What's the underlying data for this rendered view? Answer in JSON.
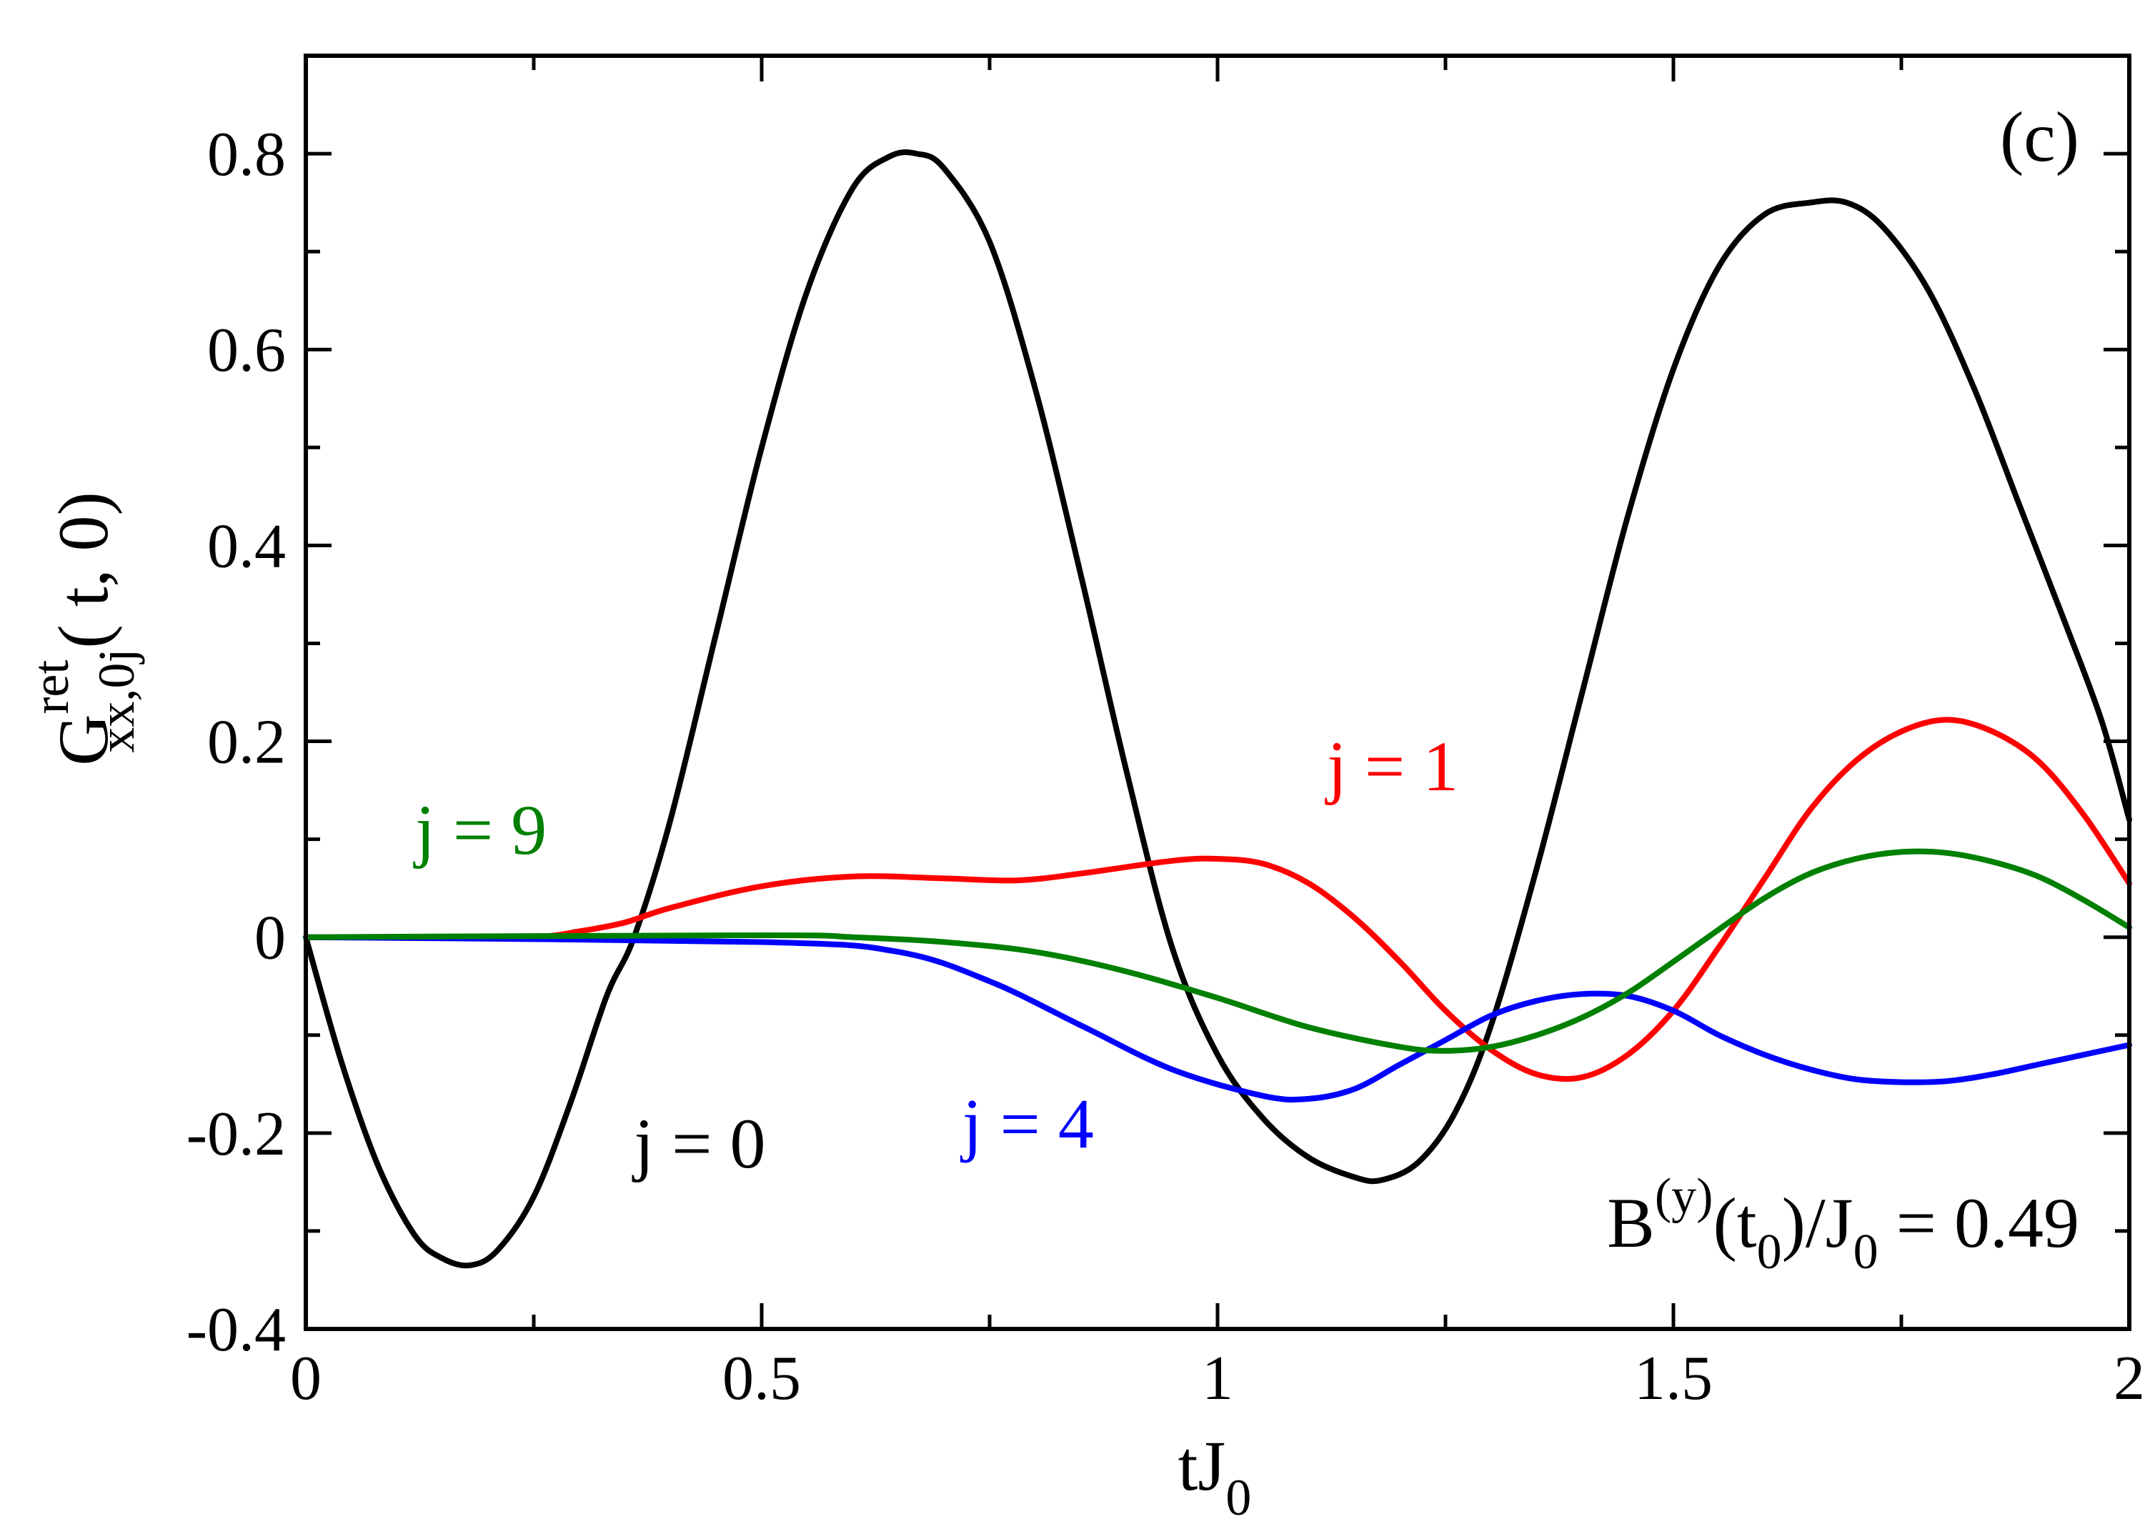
{
  "chart_data": {
    "type": "line",
    "panel_label": "(c)",
    "xlabel": {
      "main": "tJ",
      "sub": "0"
    },
    "ylabel": {
      "main": "G",
      "sup": "ret",
      "sub": "xx,0j",
      "tail": "( t, 0)"
    },
    "xlim": [
      0,
      2
    ],
    "ylim": [
      -0.4,
      0.9
    ],
    "xticks": [
      {
        "value": 0,
        "label": "0"
      },
      {
        "value": 0.5,
        "label": "0.5"
      },
      {
        "value": 1,
        "label": "1"
      },
      {
        "value": 1.5,
        "label": "1.5"
      },
      {
        "value": 2,
        "label": "2"
      }
    ],
    "yticks": [
      {
        "value": -0.4,
        "label": "-0.4"
      },
      {
        "value": -0.2,
        "label": "-0.2"
      },
      {
        "value": 0,
        "label": "0"
      },
      {
        "value": 0.2,
        "label": "0.2"
      },
      {
        "value": 0.4,
        "label": "0.4"
      },
      {
        "value": 0.6,
        "label": "0.6"
      },
      {
        "value": 0.8,
        "label": "0.8"
      }
    ],
    "x_minor_step": 0.25,
    "y_minor_step": 0.1,
    "grid": false,
    "annotation": {
      "B": "B",
      "B_sup": "(y)",
      "mid": "(t",
      "mid_sub": "0",
      "J": ")/J",
      "J_sub": "0",
      "tail": " = 0.49"
    },
    "series": [
      {
        "name": "j = 0",
        "color": "#000000",
        "label_pos": [
          0.36,
          -0.235
        ],
        "points": [
          [
            0,
            0
          ],
          [
            0.04,
            -0.13
          ],
          [
            0.08,
            -0.235
          ],
          [
            0.12,
            -0.305
          ],
          [
            0.15,
            -0.328
          ],
          [
            0.18,
            -0.335
          ],
          [
            0.21,
            -0.32
          ],
          [
            0.25,
            -0.265
          ],
          [
            0.29,
            -0.17
          ],
          [
            0.33,
            -0.06
          ],
          [
            0.36,
            0.0
          ],
          [
            0.4,
            0.12
          ],
          [
            0.45,
            0.31
          ],
          [
            0.5,
            0.5
          ],
          [
            0.55,
            0.66
          ],
          [
            0.6,
            0.765
          ],
          [
            0.64,
            0.797
          ],
          [
            0.67,
            0.8
          ],
          [
            0.7,
            0.785
          ],
          [
            0.75,
            0.71
          ],
          [
            0.8,
            0.56
          ],
          [
            0.85,
            0.37
          ],
          [
            0.9,
            0.17
          ],
          [
            0.95,
            -0.01
          ],
          [
            1.0,
            -0.12
          ],
          [
            1.05,
            -0.185
          ],
          [
            1.1,
            -0.225
          ],
          [
            1.15,
            -0.245
          ],
          [
            1.18,
            -0.248
          ],
          [
            1.22,
            -0.23
          ],
          [
            1.26,
            -0.18
          ],
          [
            1.3,
            -0.09
          ],
          [
            1.35,
            0.07
          ],
          [
            1.4,
            0.25
          ],
          [
            1.45,
            0.43
          ],
          [
            1.5,
            0.58
          ],
          [
            1.55,
            0.685
          ],
          [
            1.6,
            0.738
          ],
          [
            1.65,
            0.75
          ],
          [
            1.69,
            0.75
          ],
          [
            1.73,
            0.725
          ],
          [
            1.78,
            0.66
          ],
          [
            1.83,
            0.56
          ],
          [
            1.88,
            0.44
          ],
          [
            1.93,
            0.32
          ],
          [
            1.97,
            0.22
          ],
          [
            2.0,
            0.12
          ]
        ]
      },
      {
        "name": "j = 1",
        "color": "#ff0000",
        "label_pos": [
          1.12,
          0.15
        ],
        "points": [
          [
            0,
            0
          ],
          [
            0.15,
            0.0
          ],
          [
            0.25,
            0.0
          ],
          [
            0.3,
            0.006
          ],
          [
            0.35,
            0.015
          ],
          [
            0.4,
            0.03
          ],
          [
            0.5,
            0.052
          ],
          [
            0.6,
            0.062
          ],
          [
            0.7,
            0.06
          ],
          [
            0.78,
            0.058
          ],
          [
            0.85,
            0.065
          ],
          [
            0.95,
            0.078
          ],
          [
            1.0,
            0.08
          ],
          [
            1.05,
            0.075
          ],
          [
            1.1,
            0.055
          ],
          [
            1.15,
            0.02
          ],
          [
            1.2,
            -0.025
          ],
          [
            1.25,
            -0.075
          ],
          [
            1.3,
            -0.115
          ],
          [
            1.35,
            -0.14
          ],
          [
            1.4,
            -0.143
          ],
          [
            1.45,
            -0.12
          ],
          [
            1.5,
            -0.075
          ],
          [
            1.55,
            -0.01
          ],
          [
            1.6,
            0.06
          ],
          [
            1.65,
            0.13
          ],
          [
            1.7,
            0.18
          ],
          [
            1.75,
            0.21
          ],
          [
            1.8,
            0.222
          ],
          [
            1.85,
            0.21
          ],
          [
            1.9,
            0.18
          ],
          [
            1.95,
            0.125
          ],
          [
            2.0,
            0.055
          ]
        ]
      },
      {
        "name": "j = 4",
        "color": "#0000ff",
        "label_pos": [
          0.72,
          -0.215
        ],
        "points": [
          [
            0,
            0
          ],
          [
            0.5,
            -0.005
          ],
          [
            0.65,
            -0.015
          ],
          [
            0.75,
            -0.045
          ],
          [
            0.85,
            -0.09
          ],
          [
            0.95,
            -0.135
          ],
          [
            1.05,
            -0.162
          ],
          [
            1.1,
            -0.165
          ],
          [
            1.15,
            -0.155
          ],
          [
            1.2,
            -0.13
          ],
          [
            1.25,
            -0.105
          ],
          [
            1.3,
            -0.08
          ],
          [
            1.35,
            -0.065
          ],
          [
            1.4,
            -0.058
          ],
          [
            1.45,
            -0.06
          ],
          [
            1.5,
            -0.075
          ],
          [
            1.55,
            -0.1
          ],
          [
            1.6,
            -0.12
          ],
          [
            1.65,
            -0.135
          ],
          [
            1.7,
            -0.145
          ],
          [
            1.75,
            -0.148
          ],
          [
            1.8,
            -0.147
          ],
          [
            1.85,
            -0.14
          ],
          [
            1.9,
            -0.13
          ],
          [
            1.95,
            -0.12
          ],
          [
            2.0,
            -0.11
          ]
        ]
      },
      {
        "name": "j = 9",
        "color": "#008000",
        "label_pos": [
          0.12,
          0.085
        ],
        "points": [
          [
            0,
            0
          ],
          [
            0.5,
            0.002
          ],
          [
            0.6,
            0.0
          ],
          [
            0.7,
            -0.005
          ],
          [
            0.8,
            -0.015
          ],
          [
            0.9,
            -0.035
          ],
          [
            1.0,
            -0.062
          ],
          [
            1.1,
            -0.092
          ],
          [
            1.2,
            -0.112
          ],
          [
            1.25,
            -0.116
          ],
          [
            1.3,
            -0.112
          ],
          [
            1.35,
            -0.1
          ],
          [
            1.4,
            -0.082
          ],
          [
            1.45,
            -0.057
          ],
          [
            1.5,
            -0.025
          ],
          [
            1.55,
            0.008
          ],
          [
            1.6,
            0.04
          ],
          [
            1.65,
            0.065
          ],
          [
            1.7,
            0.08
          ],
          [
            1.75,
            0.087
          ],
          [
            1.8,
            0.086
          ],
          [
            1.85,
            0.077
          ],
          [
            1.9,
            0.062
          ],
          [
            1.95,
            0.038
          ],
          [
            2.0,
            0.01
          ]
        ]
      }
    ]
  }
}
